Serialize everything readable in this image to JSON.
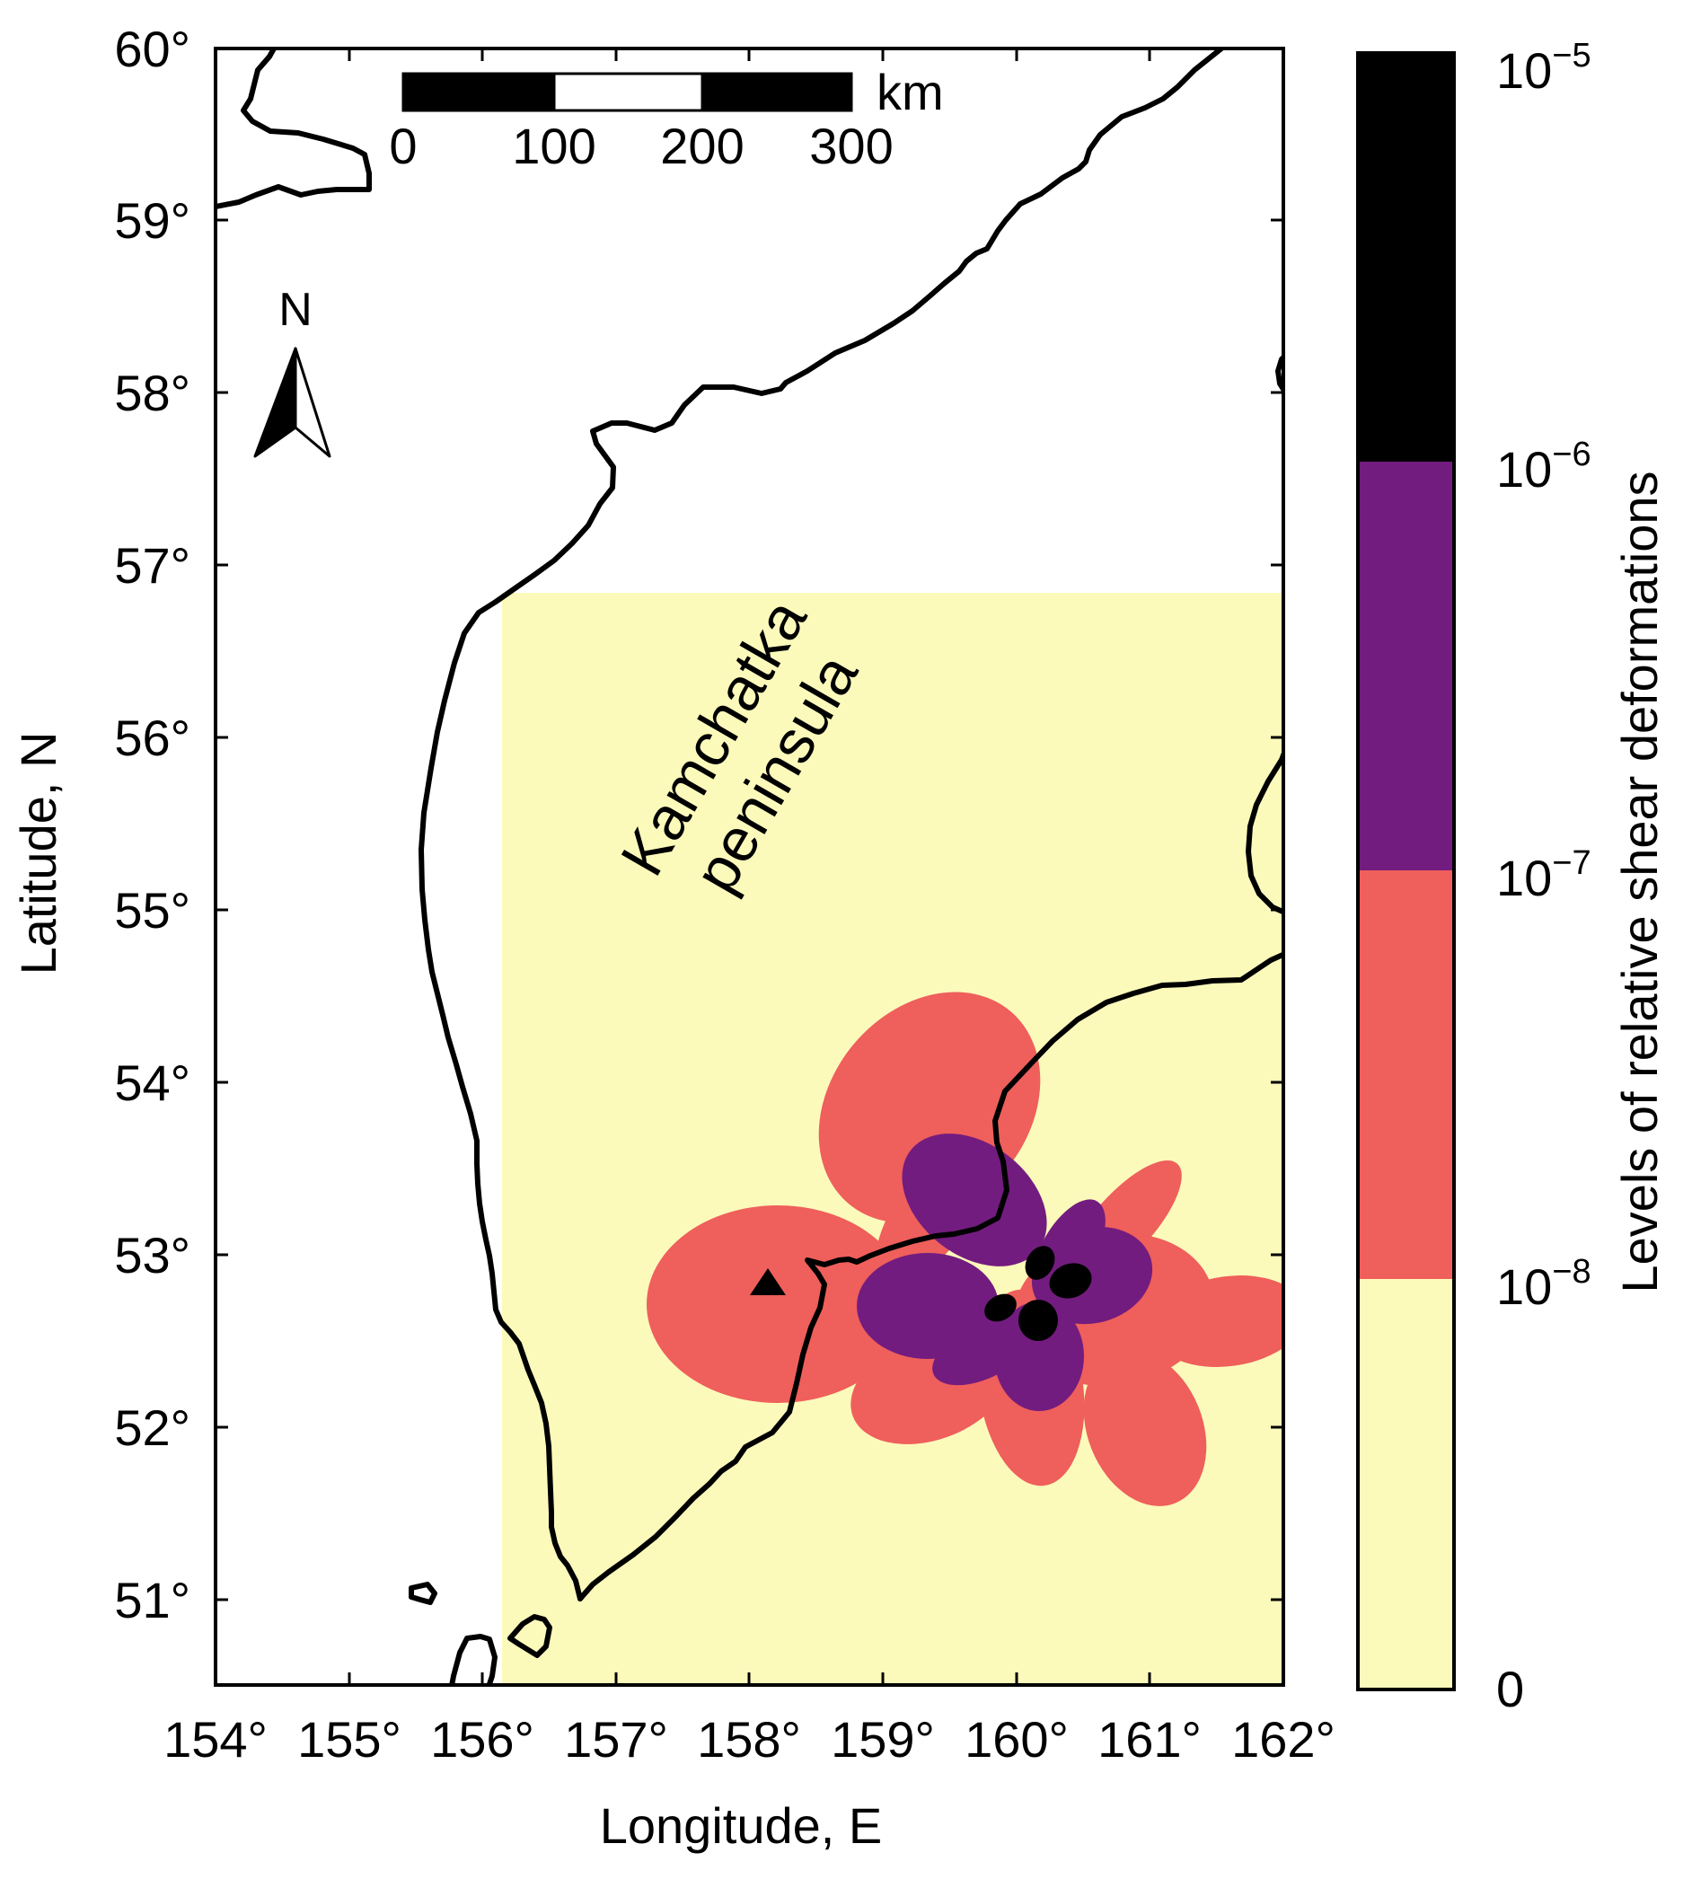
{
  "map": {
    "x_axis_title": "Longitude, E",
    "y_axis_title": "Latitude, N",
    "x_ticks": [
      "154°",
      "155°",
      "156°",
      "157°",
      "158°",
      "159°",
      "160°",
      "161°",
      "162°"
    ],
    "y_ticks": [
      "60°",
      "59°",
      "58°",
      "57°",
      "56°",
      "55°",
      "54°",
      "53°",
      "52°",
      "51°"
    ],
    "region_label_line1": "Kamchatka",
    "region_label_line2": "peninsula",
    "north_label": "N",
    "scale_bar": {
      "unit": "km",
      "labels": [
        "0",
        "100",
        "200",
        "300"
      ]
    },
    "station_marker": "triangle",
    "colors": {
      "background_zone": "#fcfabb",
      "level_1e-8": "#ef5f5b",
      "level_1e-7": "#731c7f",
      "level_1e-6": "#000000"
    }
  },
  "colorbar": {
    "title": "Levels of relative shear deformations",
    "labels": {
      "top_base": "10",
      "top_exp": "−5",
      "l6_base": "10",
      "l6_exp": "−6",
      "l7_base": "10",
      "l7_exp": "−7",
      "l8_base": "10",
      "l8_exp": "−8",
      "zero": "0"
    }
  },
  "chart_data": {
    "type": "heatmap",
    "title": "",
    "xlabel": "Longitude, E",
    "ylabel": "Latitude, N",
    "xlim": [
      154,
      162
    ],
    "ylim": [
      50.5,
      60
    ],
    "x_ticks": [
      154,
      155,
      156,
      157,
      158,
      159,
      160,
      161,
      162
    ],
    "y_ticks": [
      51,
      52,
      53,
      54,
      55,
      56,
      57,
      58,
      59,
      60
    ],
    "color_levels": [
      0,
      1e-08,
      1e-07,
      1e-06,
      1e-05
    ],
    "level_colors": [
      "#fcfabb",
      "#ef5f5b",
      "#731c7f",
      "#000000"
    ],
    "computed_area": {
      "lon": [
        156.15,
        162
      ],
      "lat": [
        50.5,
        56.85
      ]
    },
    "epicenter_center": {
      "lon": 160.1,
      "lat": 52.75
    },
    "station": {
      "lon": 158.15,
      "lat": 52.82
    },
    "scale_bar_km": [
      0,
      100,
      200,
      300
    ]
  }
}
